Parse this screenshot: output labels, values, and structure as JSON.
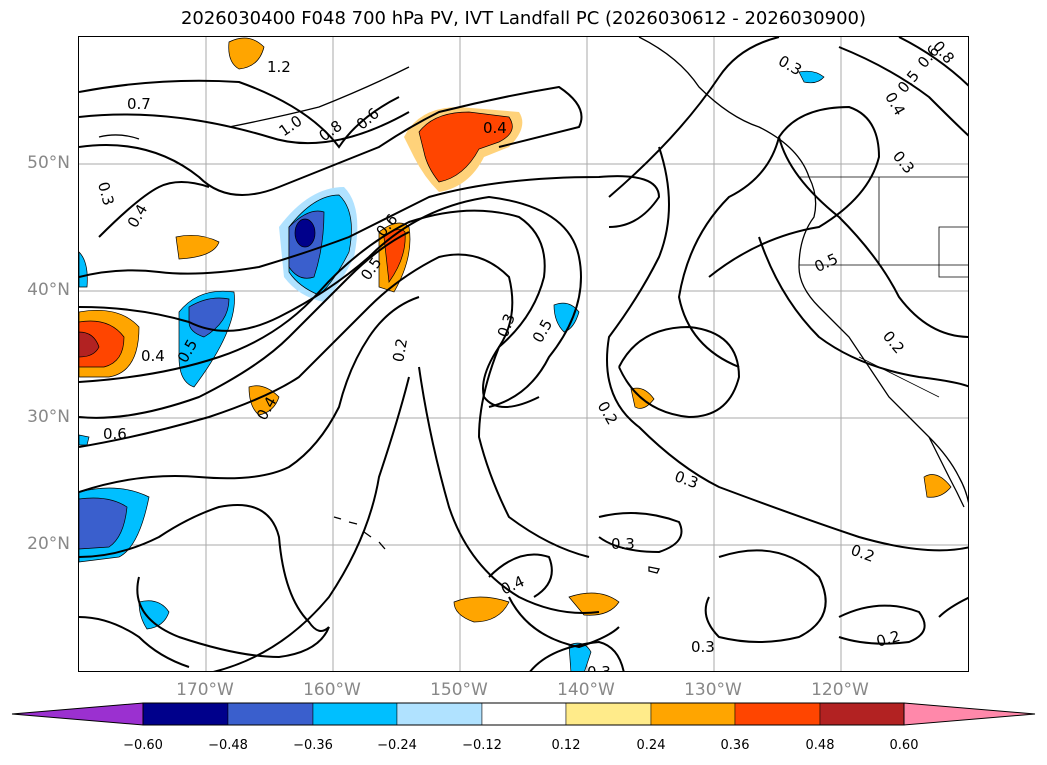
{
  "title": "2026030400 F048 700 hPa PV, IVT Landfall PC (2026030612 - 2026030900)",
  "lat_labels": [
    "50°N",
    "40°N",
    "30°N",
    "20°N"
  ],
  "lon_labels": [
    "170°W",
    "160°W",
    "150°W",
    "140°W",
    "130°W",
    "120°W"
  ],
  "contour_labels": [
    "1.2",
    "1.0",
    "0.8",
    "0.6",
    "0.7",
    "0.4",
    "0.3",
    "0.4",
    "0.6",
    "0.5",
    "0.4",
    "0.5",
    "0.4",
    "0.6",
    "0.2",
    "0.3",
    "0.5",
    "0.2",
    "0.3",
    "0.3",
    "0.4",
    "0.3",
    "0.3",
    "0.2",
    "0.2",
    "0.5",
    "0.2",
    "0.3",
    "0.5",
    "0.6",
    "0.4",
    "0.8",
    "0.3"
  ],
  "colorbar": {
    "ticks": [
      "−0.60",
      "−0.48",
      "−0.36",
      "−0.24",
      "−0.12",
      "0.12",
      "0.24",
      "0.36",
      "0.48",
      "0.60"
    ],
    "colors": [
      "#9b30d0",
      "#00008b",
      "#3a5fcd",
      "#00bfff",
      "#b0e2ff",
      "#ffffff",
      "#ffeb8a",
      "#ffa500",
      "#ff4500",
      "#b22222",
      "#ff88aa"
    ]
  },
  "map_colors": {
    "land_outline": "#000000",
    "grid": "#aaaaaa"
  }
}
